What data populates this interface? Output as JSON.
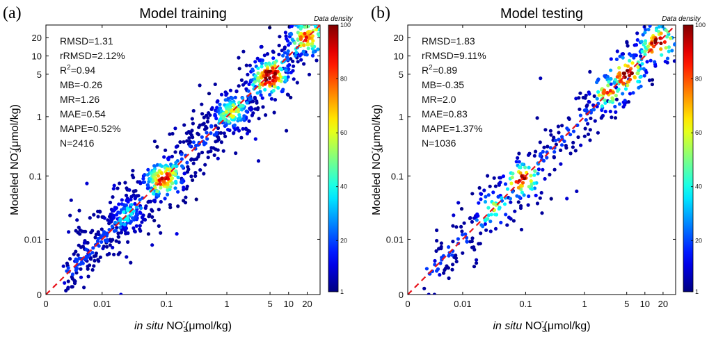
{
  "figure": {
    "description_colors": {
      "axis": "#000000",
      "one_to_one_line": "#e8141c",
      "colormap": "jet"
    }
  },
  "chart_data": [
    {
      "type": "scatter",
      "panel_label": "(a)",
      "title": "Model training",
      "xlabel": {
        "italic": "in situ",
        "base": " NO",
        "sub": "3",
        "sup": "-",
        "unit": "(μmol/kg)"
      },
      "ylabel": {
        "base": "Modeled NO",
        "sub": "3",
        "sup": "-",
        "unit": "(μmol/kg)"
      },
      "x_scale": "log-like (0 at origin)",
      "y_scale": "log-like (0 at origin)",
      "xlim": [
        0,
        30
      ],
      "ylim": [
        0,
        30
      ],
      "x_ticks": [
        "0",
        "0.01",
        "0.1",
        "1",
        "5",
        "10",
        "20"
      ],
      "x_tick_values": [
        0,
        0.01,
        0.1,
        1,
        5,
        10,
        20
      ],
      "y_ticks": [
        "0",
        "0.01",
        "0.1",
        "1",
        "5",
        "10",
        "20"
      ],
      "y_tick_values": [
        0,
        0.01,
        0.1,
        1,
        5,
        10,
        20
      ],
      "colorbar": {
        "title": "Data density",
        "ticks": [
          "1",
          "20",
          "40",
          "60",
          "80",
          "100"
        ],
        "tick_values": [
          1,
          20,
          40,
          60,
          80,
          100
        ],
        "range": [
          1,
          100
        ]
      },
      "stats": [
        {
          "label": "RMSD=1.31"
        },
        {
          "label": "rRMSD=2.12%"
        },
        {
          "pre": "R",
          "sup": "2",
          "post": "=0.94"
        },
        {
          "label": "MB=-0.26"
        },
        {
          "label": "MR=1.26"
        },
        {
          "label": "MAE=0.54"
        },
        {
          "label": "MAPE=0.52%"
        },
        {
          "label": "N=2416"
        }
      ],
      "clusters": [
        {
          "x": 5,
          "y": 4.5,
          "peak": 100
        },
        {
          "x": 0.09,
          "y": 0.09,
          "peak": 80
        },
        {
          "x": 20,
          "y": 20,
          "peak": 75
        },
        {
          "x": 1.2,
          "y": 1.2,
          "peak": 50
        },
        {
          "x": 0.025,
          "y": 0.025,
          "peak": 25
        }
      ],
      "n_points": 2416,
      "one_to_one_line": true
    },
    {
      "type": "scatter",
      "panel_label": "(b)",
      "title": "Model testing",
      "xlabel": {
        "italic": "in situ",
        "base": " NO",
        "sub": "3",
        "sup": "-",
        "unit": "(μmol/kg)"
      },
      "ylabel": {
        "base": "Modeled NO",
        "sub": "3",
        "sup": "-",
        "unit": "(μmol/kg)"
      },
      "x_scale": "log-like (0 at origin)",
      "y_scale": "log-like (0 at origin)",
      "xlim": [
        0,
        30
      ],
      "ylim": [
        0,
        30
      ],
      "x_ticks": [
        "0",
        "0.01",
        "0.1",
        "1",
        "5",
        "10",
        "20"
      ],
      "x_tick_values": [
        0,
        0.01,
        0.1,
        1,
        5,
        10,
        20
      ],
      "y_ticks": [
        "0",
        "0.01",
        "0.1",
        "1",
        "5",
        "10",
        "20"
      ],
      "y_tick_values": [
        0,
        0.01,
        0.1,
        1,
        5,
        10,
        20
      ],
      "colorbar": {
        "title": "Data density",
        "ticks": [
          "1",
          "20",
          "40",
          "60",
          "80",
          "100"
        ],
        "tick_values": [
          1,
          20,
          40,
          60,
          80,
          100
        ],
        "range": [
          1,
          100
        ]
      },
      "stats": [
        {
          "label": "RMSD=1.83"
        },
        {
          "label": "rRMSD=9.11%"
        },
        {
          "pre": "R",
          "sup": "2",
          "post": "=0.89"
        },
        {
          "label": "MB=-0.35"
        },
        {
          "label": "MR=2.0"
        },
        {
          "label": "MAE=0.83"
        },
        {
          "label": "MAPE=1.37%"
        },
        {
          "label": "N=1036"
        }
      ],
      "clusters": [
        {
          "x": 5,
          "y": 5,
          "peak": 100
        },
        {
          "x": 16,
          "y": 16,
          "peak": 90
        },
        {
          "x": 0.09,
          "y": 0.09,
          "peak": 85
        },
        {
          "x": 2.5,
          "y": 2.5,
          "peak": 70
        },
        {
          "x": 0.03,
          "y": 0.03,
          "peak": 45
        }
      ],
      "n_points": 1036,
      "one_to_one_line": true
    }
  ]
}
